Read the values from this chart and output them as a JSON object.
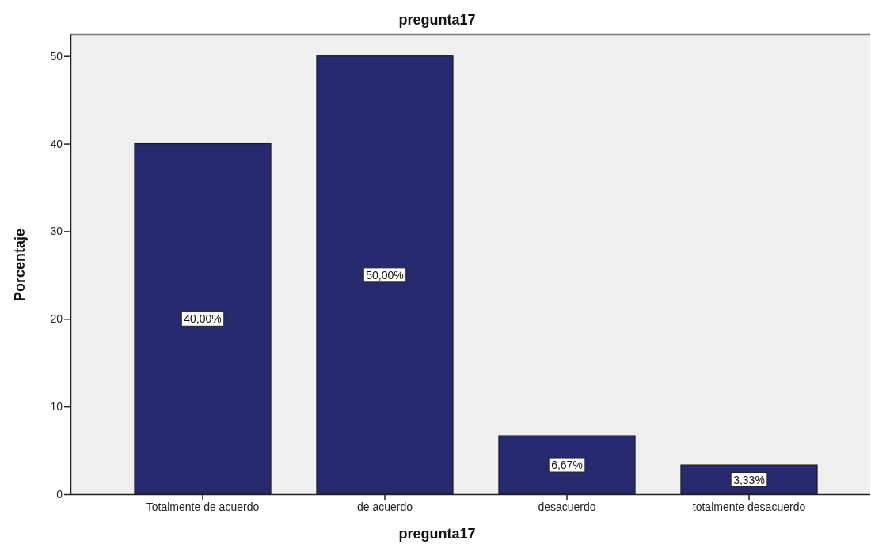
{
  "chart_data": {
    "type": "bar",
    "title": "pregunta17",
    "xlabel": "pregunta17",
    "ylabel": "Porcentaje",
    "categories": [
      "Totalmente de acuerdo",
      "de acuerdo",
      "desacuerdo",
      "totalmente desacuerdo"
    ],
    "values": [
      40,
      50,
      6.67,
      3.33
    ],
    "value_labels": [
      "40,00%",
      "50,00%",
      "6,67%",
      "3,33%"
    ],
    "color": "#282a70",
    "ylim": [
      0,
      52.5
    ],
    "yticks": [
      0,
      10,
      20,
      30,
      40,
      50
    ]
  }
}
